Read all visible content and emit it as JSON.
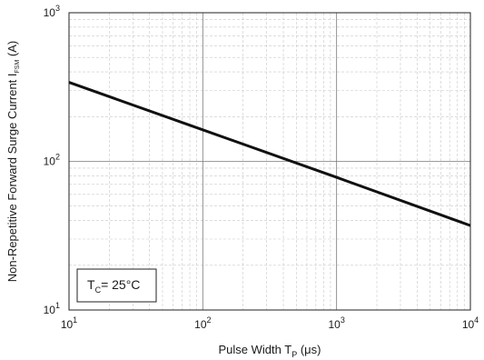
{
  "chart_data": {
    "type": "line",
    "xscale": "log",
    "yscale": "log",
    "xlim": [
      10,
      10000
    ],
    "ylim": [
      10,
      1000
    ],
    "xlabel": {
      "main": "Pulse Width T",
      "sub": "P",
      "unit": " (μs)"
    },
    "ylabel": {
      "main": "Non-Repetitive Forward Surge Current I",
      "sub": "FSM",
      "unit": " (A)"
    },
    "x_ticks": [
      {
        "value": 10,
        "base": "10",
        "exp": "1"
      },
      {
        "value": 100,
        "base": "10",
        "exp": "2"
      },
      {
        "value": 1000,
        "base": "10",
        "exp": "3"
      },
      {
        "value": 10000,
        "base": "10",
        "exp": "4"
      }
    ],
    "y_ticks": [
      {
        "value": 10,
        "base": "10",
        "exp": "1"
      },
      {
        "value": 100,
        "base": "10",
        "exp": "2"
      },
      {
        "value": 1000,
        "base": "10",
        "exp": "3"
      }
    ],
    "grid": true,
    "series": [
      {
        "color": "#111111",
        "x": [
          10,
          100,
          1000,
          10000
        ],
        "y": [
          340,
          163,
          78,
          37
        ]
      }
    ],
    "annotation": {
      "prefix": "T",
      "sub": "C",
      "suffix": "= 25°C",
      "position": "bottom-left"
    }
  }
}
